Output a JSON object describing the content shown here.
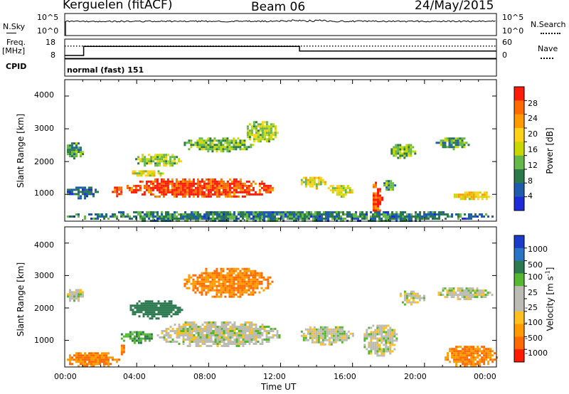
{
  "header": {
    "station": "Kerguelen (fitACF)",
    "beam": "Beam 06",
    "date": "24/May/2015"
  },
  "panels": {
    "nsky": {
      "label": "N.Sky",
      "left_ticks": [
        "10^5",
        "10^0"
      ],
      "right_ticks": [
        "10^5",
        "10^0"
      ],
      "right_label": "N.Search"
    },
    "freq": {
      "label_line1": "Freq.",
      "label_line2": "[MHz]",
      "left_ticks": [
        "18",
        "8"
      ],
      "right_ticks": [
        "60",
        "0"
      ],
      "right_label": "Nave"
    },
    "cpid": {
      "label": "CPID",
      "text": "normal (fast) 151"
    }
  },
  "axes": {
    "ylabel": "Slant Range [km]",
    "xlabel": "Time UT",
    "yticks": [
      "4000",
      "3000",
      "2000",
      "1000"
    ],
    "xticks": [
      "00:00",
      "04:00",
      "08:00",
      "12:00",
      "16:00",
      "20:00",
      "00:00"
    ]
  },
  "colorbars": {
    "power": {
      "label": "Power [dB]",
      "ticks": [
        "28",
        "24",
        "20",
        "16",
        "12",
        "8",
        "4"
      ],
      "colors": [
        "#ff1a0a",
        "#ff6a00",
        "#ff9a00",
        "#ffd21a",
        "#c8d800",
        "#66b84a",
        "#2a7a4a",
        "#1f5cb0",
        "#1d2bd8"
      ]
    },
    "velocity": {
      "label": "Velocity [m s",
      "label_sup": "-1",
      "label_end": "]",
      "ticks": [
        "1000",
        "500",
        "100",
        "25",
        "-25",
        "-100",
        "-500",
        "-1000"
      ],
      "colors": [
        "#1a3cc8",
        "#2a74c8",
        "#2e7a50",
        "#55b830",
        "#bcbcb4",
        "#bcbcb4",
        "#ffc020",
        "#ff9a00",
        "#ff6a00",
        "#ff1a00"
      ]
    }
  },
  "chart_data": [
    {
      "type": "heatmap",
      "name": "power",
      "x_range_hours": [
        0,
        24
      ],
      "y_range_km": [
        180,
        4500
      ],
      "blobs": [
        {
          "t": [
            2.5,
            3.2
          ],
          "r": [
            950,
            1300
          ],
          "val": 26
        },
        {
          "t": [
            3.2,
            11.8
          ],
          "r": [
            900,
            1550
          ],
          "val": 27
        },
        {
          "t": [
            3.5,
            5.5
          ],
          "r": [
            1550,
            1800
          ],
          "val": 16
        },
        {
          "t": [
            3.8,
            6.5
          ],
          "r": [
            1850,
            2300
          ],
          "val": 14
        },
        {
          "t": [
            6.5,
            10.5
          ],
          "r": [
            2300,
            2800
          ],
          "val": 12
        },
        {
          "t": [
            10.0,
            11.8
          ],
          "r": [
            2600,
            3300
          ],
          "val": 14
        },
        {
          "t": [
            13.0,
            14.5
          ],
          "r": [
            1200,
            1600
          ],
          "val": 16
        },
        {
          "t": [
            14.5,
            16.0
          ],
          "r": [
            950,
            1350
          ],
          "val": 16
        },
        {
          "t": [
            17.0,
            17.6
          ],
          "r": [
            400,
            1450
          ],
          "val": 26
        },
        {
          "t": [
            17.6,
            18.4
          ],
          "r": [
            1150,
            1500
          ],
          "val": 10
        },
        {
          "t": [
            18.0,
            19.5
          ],
          "r": [
            2100,
            2600
          ],
          "val": 12
        },
        {
          "t": [
            20.5,
            22.5
          ],
          "r": [
            2400,
            2800
          ],
          "val": 10
        },
        {
          "t": [
            21.5,
            23.8
          ],
          "r": [
            850,
            1150
          ],
          "val": 18
        },
        {
          "t": [
            0.0,
            24.0
          ],
          "r": [
            180,
            550
          ],
          "val": 8
        },
        {
          "t": [
            0.0,
            1.0
          ],
          "r": [
            2100,
            2650
          ],
          "val": 10
        },
        {
          "t": [
            0.0,
            1.8
          ],
          "r": [
            900,
            1300
          ],
          "val": 6
        }
      ]
    },
    {
      "type": "heatmap",
      "name": "velocity",
      "x_range_hours": [
        0,
        24
      ],
      "y_range_km": [
        180,
        4500
      ],
      "blobs": [
        {
          "t": [
            5.0,
            12.0
          ],
          "r": [
            800,
            1650
          ],
          "val": 0
        },
        {
          "t": [
            3.0,
            5.0
          ],
          "r": [
            950,
            1350
          ],
          "val": 60
        },
        {
          "t": [
            3.0,
            3.3
          ],
          "r": [
            550,
            1000
          ],
          "val": -300
        },
        {
          "t": [
            3.5,
            6.5
          ],
          "r": [
            1700,
            2300
          ],
          "val": 100
        },
        {
          "t": [
            6.5,
            11.5
          ],
          "r": [
            2350,
            3300
          ],
          "val": -300
        },
        {
          "t": [
            13.0,
            16.0
          ],
          "r": [
            900,
            1500
          ],
          "val": 0
        },
        {
          "t": [
            16.5,
            18.5
          ],
          "r": [
            500,
            1550
          ],
          "val": 0
        },
        {
          "t": [
            18.5,
            20.0
          ],
          "r": [
            2100,
            2600
          ],
          "val": 0
        },
        {
          "t": [
            20.5,
            23.8
          ],
          "r": [
            2300,
            2700
          ],
          "val": 0
        },
        {
          "t": [
            21.0,
            24.0
          ],
          "r": [
            180,
            900
          ],
          "val": -300
        },
        {
          "t": [
            0.0,
            3.0
          ],
          "r": [
            180,
            700
          ],
          "val": -300
        },
        {
          "t": [
            0.0,
            1.0
          ],
          "r": [
            2200,
            2650
          ],
          "val": 0
        }
      ]
    },
    {
      "type": "line",
      "name": "frequency",
      "series": [
        {
          "x": [
            0,
            1.05,
            1.05,
            13.05,
            13.05,
            24
          ],
          "y": [
            8.5,
            8.5,
            14.5,
            14.5,
            11.5,
            11.5
          ]
        }
      ]
    },
    {
      "type": "line",
      "name": "nave",
      "series": [
        {
          "x": [
            0,
            24
          ],
          "y": [
            40,
            40
          ]
        }
      ]
    }
  ]
}
